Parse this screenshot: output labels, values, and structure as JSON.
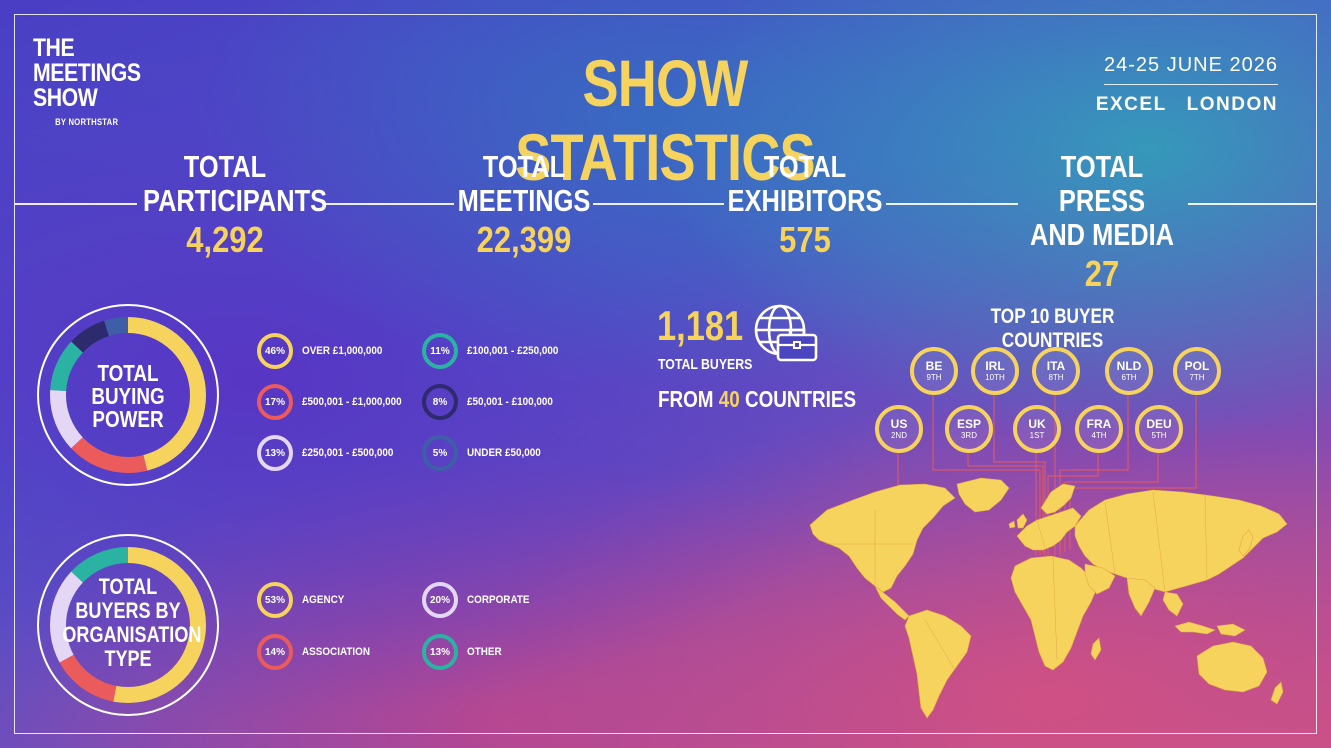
{
  "header": {
    "logo_lines": [
      "THE",
      "MEETINGS",
      "SHOW"
    ],
    "logo_by": "BY NORTHSTAR",
    "title": "SHOW STATISTICS",
    "date": "24-25 JUNE 2026",
    "venue": "EXCEL   LONDON"
  },
  "kpis": [
    {
      "label_lines": [
        "TOTAL",
        "PARTICIPANTS"
      ],
      "value": "4,292"
    },
    {
      "label_lines": [
        "TOTAL",
        "MEETINGS"
      ],
      "value": "22,399"
    },
    {
      "label_lines": [
        "TOTAL",
        "EXHIBITORS"
      ],
      "value": "575"
    },
    {
      "label_lines": [
        "TOTAL PRESS",
        "AND MEDIA"
      ],
      "value": "27"
    }
  ],
  "buyers": {
    "count": "1,181",
    "count_label": "TOTAL BUYERS",
    "countries_prefix": "FROM",
    "countries_num": "40",
    "countries_suffix": "COUNTRIES"
  },
  "top_countries_title": "TOP 10 BUYER COUNTRIES",
  "top_countries": [
    {
      "code": "BE",
      "rank": "9TH"
    },
    {
      "code": "IRL",
      "rank": "10TH"
    },
    {
      "code": "ITA",
      "rank": "8TH"
    },
    {
      "code": "NLD",
      "rank": "6TH"
    },
    {
      "code": "POL",
      "rank": "7TH"
    },
    {
      "code": "US",
      "rank": "2ND"
    },
    {
      "code": "ESP",
      "rank": "3RD"
    },
    {
      "code": "UK",
      "rank": "1ST"
    },
    {
      "code": "FRA",
      "rank": "4TH"
    },
    {
      "code": "DEU",
      "rank": "5TH"
    }
  ],
  "icons": [
    "globe-briefcase-icon",
    "world-map"
  ],
  "colors": {
    "yellow": "#f6d35c",
    "red": "#ec5b5b",
    "lavender": "#e4d6f5",
    "teal": "#2ab3a3",
    "navy": "#2e2a6e",
    "slate": "#3e5fa8"
  },
  "chart_data": [
    {
      "type": "pie",
      "title": "TOTAL BUYING POWER",
      "title_lines": [
        "TOTAL",
        "BUYING",
        "POWER"
      ],
      "series": [
        {
          "name": "OVER £1,000,000",
          "value": 46,
          "label": "46%",
          "color": "#f6d35c"
        },
        {
          "name": "£500,001 - £1,000,000",
          "value": 17,
          "label": "17%",
          "color": "#ec5b5b"
        },
        {
          "name": "£250,001 - £500,000",
          "value": 13,
          "label": "13%",
          "color": "#e4d6f5"
        },
        {
          "name": "£100,001 - £250,000",
          "value": 11,
          "label": "11%",
          "color": "#2ab3a3"
        },
        {
          "name": "£50,001 - £100,000",
          "value": 8,
          "label": "8%",
          "color": "#2e2a6e"
        },
        {
          "name": "UNDER £50,000",
          "value": 5,
          "label": "5%",
          "color": "#3e5fa8"
        }
      ]
    },
    {
      "type": "pie",
      "title": "TOTAL BUYERS BY ORGANISATION TYPE",
      "title_lines": [
        "TOTAL",
        "BUYERS BY",
        "ORGANISATION",
        "TYPE"
      ],
      "series": [
        {
          "name": "AGENCY",
          "value": 53,
          "label": "53%",
          "color": "#f6d35c"
        },
        {
          "name": "ASSOCIATION",
          "value": 14,
          "label": "14%",
          "color": "#ec5b5b"
        },
        {
          "name": "CORPORATE",
          "value": 20,
          "label": "20%",
          "color": "#e4d6f5"
        },
        {
          "name": "OTHER",
          "value": 13,
          "label": "13%",
          "color": "#2ab3a3"
        }
      ]
    }
  ]
}
